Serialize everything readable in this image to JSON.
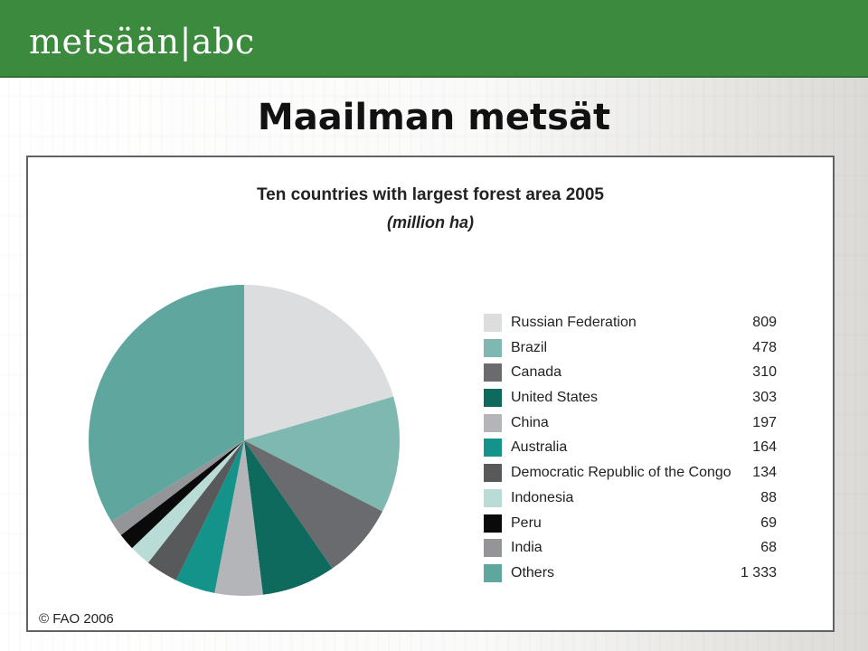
{
  "header": {
    "logo_text": "metsään|abc",
    "background": "#3b8a3e"
  },
  "page": {
    "title": "Maailman metsät"
  },
  "chart_data": {
    "type": "pie",
    "title": "Ten countries with largest forest area 2005",
    "subtitle": "(million ha)",
    "legend_position": "right",
    "slices": [
      {
        "label": "Russian Federation",
        "value": 809,
        "value_text": "809",
        "color": "#dcdddf"
      },
      {
        "label": "Brazil",
        "value": 478,
        "value_text": "478",
        "color": "#7fb8b0"
      },
      {
        "label": "Canada",
        "value": 310,
        "value_text": "310",
        "color": "#6a6b6e"
      },
      {
        "label": "United States",
        "value": 303,
        "value_text": "303",
        "color": "#0e6a5c"
      },
      {
        "label": "China",
        "value": 197,
        "value_text": "197",
        "color": "#b3b5b8"
      },
      {
        "label": "Australia",
        "value": 164,
        "value_text": "164",
        "color": "#14938a"
      },
      {
        "label": "Democratic Republic of the Congo",
        "value": 134,
        "value_text": "134",
        "color": "#58595b"
      },
      {
        "label": "Indonesia",
        "value": 88,
        "value_text": "88",
        "color": "#b9dcd6"
      },
      {
        "label": "Peru",
        "value": 69,
        "value_text": "69",
        "color": "#0a0a0a"
      },
      {
        "label": "India",
        "value": 68,
        "value_text": "68",
        "color": "#939598"
      },
      {
        "label": "Others",
        "value": 1333,
        "value_text": "1 333",
        "color": "#5fa79e"
      }
    ],
    "source": "© FAO 2006"
  }
}
